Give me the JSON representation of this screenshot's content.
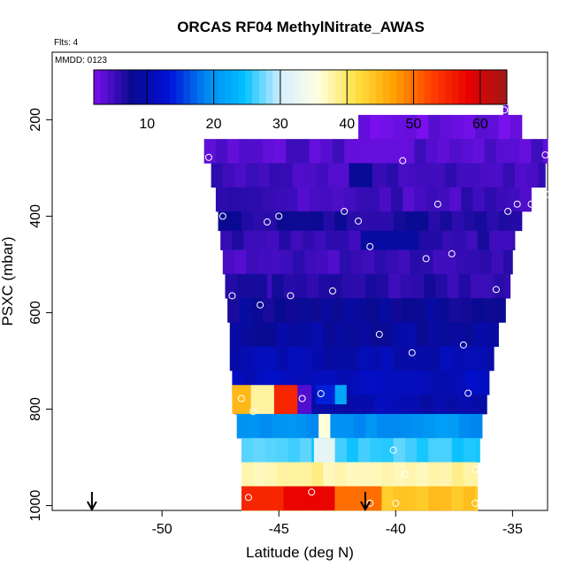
{
  "chart_data": {
    "type": "heatmap",
    "title": "ORCAS RF04 MethylNitrate_AWAS",
    "flights_label": "Flts: 4",
    "date_label": "MMDD: 0123",
    "xlabel": "Latitude (deg N)",
    "ylabel": "PSXC (mbar)",
    "xlim": [
      -54.7,
      -33.5
    ],
    "ylim": [
      1010,
      60
    ],
    "xticks": [
      -50,
      -45,
      -40,
      -35
    ],
    "xtick_labels": [
      "-50",
      "-45",
      "-40",
      "-35"
    ],
    "yticks": [
      200,
      400,
      600,
      800,
      1000
    ],
    "ytick_labels": [
      "200",
      "400",
      "600",
      "800",
      "1000"
    ],
    "colorbar": {
      "range": [
        2,
        64
      ],
      "ticks": [
        10,
        20,
        30,
        40,
        50,
        60
      ],
      "tick_labels": [
        "10",
        "20",
        "30",
        "40",
        "50",
        "60"
      ],
      "colors": [
        "#7a10ee",
        "#0a0a90",
        "#0010d8",
        "#0088f0",
        "#00c0ff",
        "#d8f0ff",
        "#ffffe0",
        "#ffe040",
        "#ffa000",
        "#ff4000",
        "#e80000",
        "#a01818"
      ]
    },
    "layers": [
      {
        "p_top": 170,
        "p_bot": 190,
        "lat_min": -35.4,
        "lat_max": -35.2,
        "value": 3
      },
      {
        "p_top": 190,
        "p_bot": 240,
        "lat_min": -41.6,
        "lat_max": -34.6,
        "value": 3
      },
      {
        "p_top": 240,
        "p_bot": 290,
        "lat_min": -48.2,
        "lat_max": -33.5,
        "value": 4
      },
      {
        "p_top": 290,
        "p_bot": 340,
        "lat_min": -47.9,
        "lat_max": -33.6,
        "value": 5
      },
      {
        "p_top": 340,
        "p_bot": 390,
        "lat_min": -47.7,
        "lat_max": -34.2,
        "value": 5
      },
      {
        "p_top": 390,
        "p_bot": 430,
        "lat_min": -47.6,
        "lat_max": -34.6,
        "value": 7
      },
      {
        "p_top": 430,
        "p_bot": 470,
        "lat_min": -47.5,
        "lat_max": -34.9,
        "value": 6
      },
      {
        "p_top": 470,
        "p_bot": 520,
        "lat_min": -47.4,
        "lat_max": -35.0,
        "value": 5
      },
      {
        "p_top": 520,
        "p_bot": 570,
        "lat_min": -47.3,
        "lat_max": -35.1,
        "value": 6
      },
      {
        "p_top": 570,
        "p_bot": 620,
        "lat_min": -47.2,
        "lat_max": -35.3,
        "value": 8
      },
      {
        "p_top": 620,
        "p_bot": 670,
        "lat_min": -47.1,
        "lat_max": -35.6,
        "value": 9
      },
      {
        "p_top": 670,
        "p_bot": 720,
        "lat_min": -47.1,
        "lat_max": -35.8,
        "value": 10
      },
      {
        "p_top": 720,
        "p_bot": 770,
        "lat_min": -47.0,
        "lat_max": -36.0,
        "value": 11
      },
      {
        "p_top": 770,
        "p_bot": 810,
        "lat_min": -46.9,
        "lat_max": -36.1,
        "value": 10
      },
      {
        "p_top": 810,
        "p_bot": 860,
        "lat_min": -46.8,
        "lat_max": -36.3,
        "value": 20
      },
      {
        "p_top": 860,
        "p_bot": 910,
        "lat_min": -46.6,
        "lat_max": -36.4,
        "value": 26
      },
      {
        "p_top": 910,
        "p_bot": 960,
        "lat_min": -46.6,
        "lat_max": -36.5,
        "value": 38
      },
      {
        "p_top": 960,
        "p_bot": 1010,
        "lat_min": -46.6,
        "lat_max": -36.5,
        "value": 44
      }
    ],
    "patches": [
      {
        "p_top": 750,
        "p_bot": 810,
        "lat_min": -47.0,
        "lat_max": -46.2,
        "value": 45
      },
      {
        "p_top": 750,
        "p_bot": 810,
        "lat_min": -46.2,
        "lat_max": -45.2,
        "value": 38
      },
      {
        "p_top": 750,
        "p_bot": 810,
        "lat_min": -45.2,
        "lat_max": -44.2,
        "value": 55
      },
      {
        "p_top": 750,
        "p_bot": 810,
        "lat_min": -44.2,
        "lat_max": -43.6,
        "value": 4
      },
      {
        "p_top": 750,
        "p_bot": 790,
        "lat_min": -43.4,
        "lat_max": -42.6,
        "value": 14
      },
      {
        "p_top": 750,
        "p_bot": 790,
        "lat_min": -42.6,
        "lat_max": -42.1,
        "value": 22
      },
      {
        "p_top": 960,
        "p_bot": 1010,
        "lat_min": -46.6,
        "lat_max": -44.8,
        "value": 55
      },
      {
        "p_top": 960,
        "p_bot": 1010,
        "lat_min": -44.8,
        "lat_max": -42.6,
        "value": 58
      },
      {
        "p_top": 960,
        "p_bot": 1010,
        "lat_min": -42.6,
        "lat_max": -40.6,
        "value": 50
      },
      {
        "p_top": 860,
        "p_bot": 910,
        "lat_min": -43.5,
        "lat_max": -42.6,
        "value": 32
      },
      {
        "p_top": 810,
        "p_bot": 860,
        "lat_min": -43.3,
        "lat_max": -42.8,
        "value": 36
      },
      {
        "p_top": 290,
        "p_bot": 340,
        "lat_min": -42.0,
        "lat_max": -41.0,
        "value": 8
      },
      {
        "p_top": 430,
        "p_bot": 470,
        "lat_min": -41.5,
        "lat_max": -39.0,
        "value": 9
      },
      {
        "p_top": 520,
        "p_bot": 570,
        "lat_min": -46.8,
        "lat_max": -45.5,
        "value": 7
      },
      {
        "p_top": 240,
        "p_bot": 290,
        "lat_min": -41.8,
        "lat_max": -39.5,
        "value": 3
      }
    ],
    "sample_points": [
      {
        "lat": -35.35,
        "p": 180
      },
      {
        "lat": -33.6,
        "p": 273
      },
      {
        "lat": -48.0,
        "p": 278
      },
      {
        "lat": -39.7,
        "p": 285
      },
      {
        "lat": -33.55,
        "p": 355
      },
      {
        "lat": -34.2,
        "p": 375
      },
      {
        "lat": -34.8,
        "p": 375
      },
      {
        "lat": -38.2,
        "p": 375
      },
      {
        "lat": -35.2,
        "p": 390
      },
      {
        "lat": -42.2,
        "p": 390
      },
      {
        "lat": -47.4,
        "p": 400
      },
      {
        "lat": -45.0,
        "p": 400
      },
      {
        "lat": -45.5,
        "p": 412
      },
      {
        "lat": -41.6,
        "p": 410
      },
      {
        "lat": -41.1,
        "p": 463
      },
      {
        "lat": -37.6,
        "p": 478
      },
      {
        "lat": -38.7,
        "p": 488
      },
      {
        "lat": -42.7,
        "p": 555
      },
      {
        "lat": -35.7,
        "p": 552
      },
      {
        "lat": -47.0,
        "p": 565
      },
      {
        "lat": -44.5,
        "p": 565
      },
      {
        "lat": -45.8,
        "p": 584
      },
      {
        "lat": -40.7,
        "p": 645
      },
      {
        "lat": -37.1,
        "p": 667
      },
      {
        "lat": -39.3,
        "p": 683
      },
      {
        "lat": -43.2,
        "p": 768
      },
      {
        "lat": -36.9,
        "p": 767
      },
      {
        "lat": -46.6,
        "p": 778
      },
      {
        "lat": -44.0,
        "p": 778
      },
      {
        "lat": -46.1,
        "p": 805
      },
      {
        "lat": -40.1,
        "p": 885
      },
      {
        "lat": -39.6,
        "p": 935
      },
      {
        "lat": -36.6,
        "p": 925
      },
      {
        "lat": -43.6,
        "p": 972
      },
      {
        "lat": -46.3,
        "p": 983
      },
      {
        "lat": -41.1,
        "p": 995
      },
      {
        "lat": -40.0,
        "p": 995
      },
      {
        "lat": -36.6,
        "p": 995
      }
    ],
    "arrows": [
      {
        "lat": -53.0
      },
      {
        "lat": -41.3
      }
    ]
  }
}
